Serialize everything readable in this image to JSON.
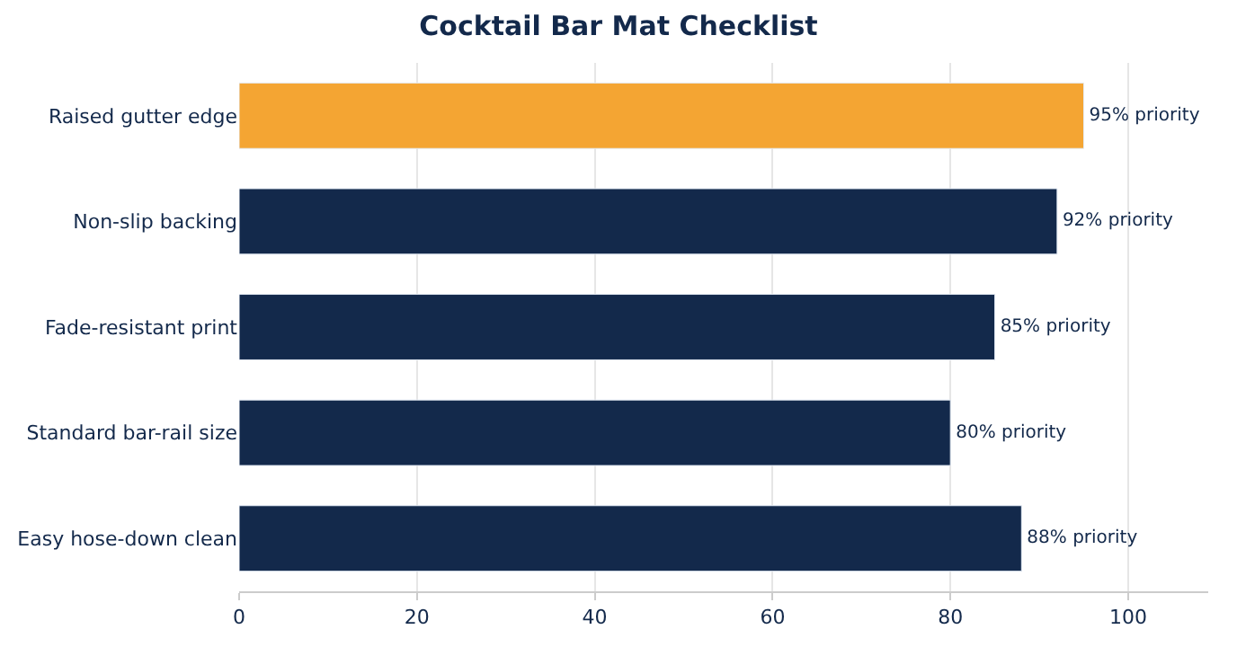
{
  "chart_data": {
    "type": "bar",
    "orientation": "horizontal",
    "title": "Cocktail Bar Mat Checklist",
    "categories": [
      "Raised gutter edge",
      "Non-slip backing",
      "Fade-resistant print",
      "Standard bar-rail size",
      "Easy hose-down clean"
    ],
    "values": [
      95,
      92,
      85,
      80,
      88
    ],
    "colors": [
      "#f4a533",
      "#13294b",
      "#13294b",
      "#13294b",
      "#13294b"
    ],
    "value_labels": [
      "95% priority",
      "92% priority",
      "85% priority",
      "80% priority",
      "88% priority"
    ],
    "xlim": [
      0,
      109
    ],
    "xticks": [
      0,
      20,
      40,
      60,
      80,
      100
    ],
    "grid": "x"
  }
}
